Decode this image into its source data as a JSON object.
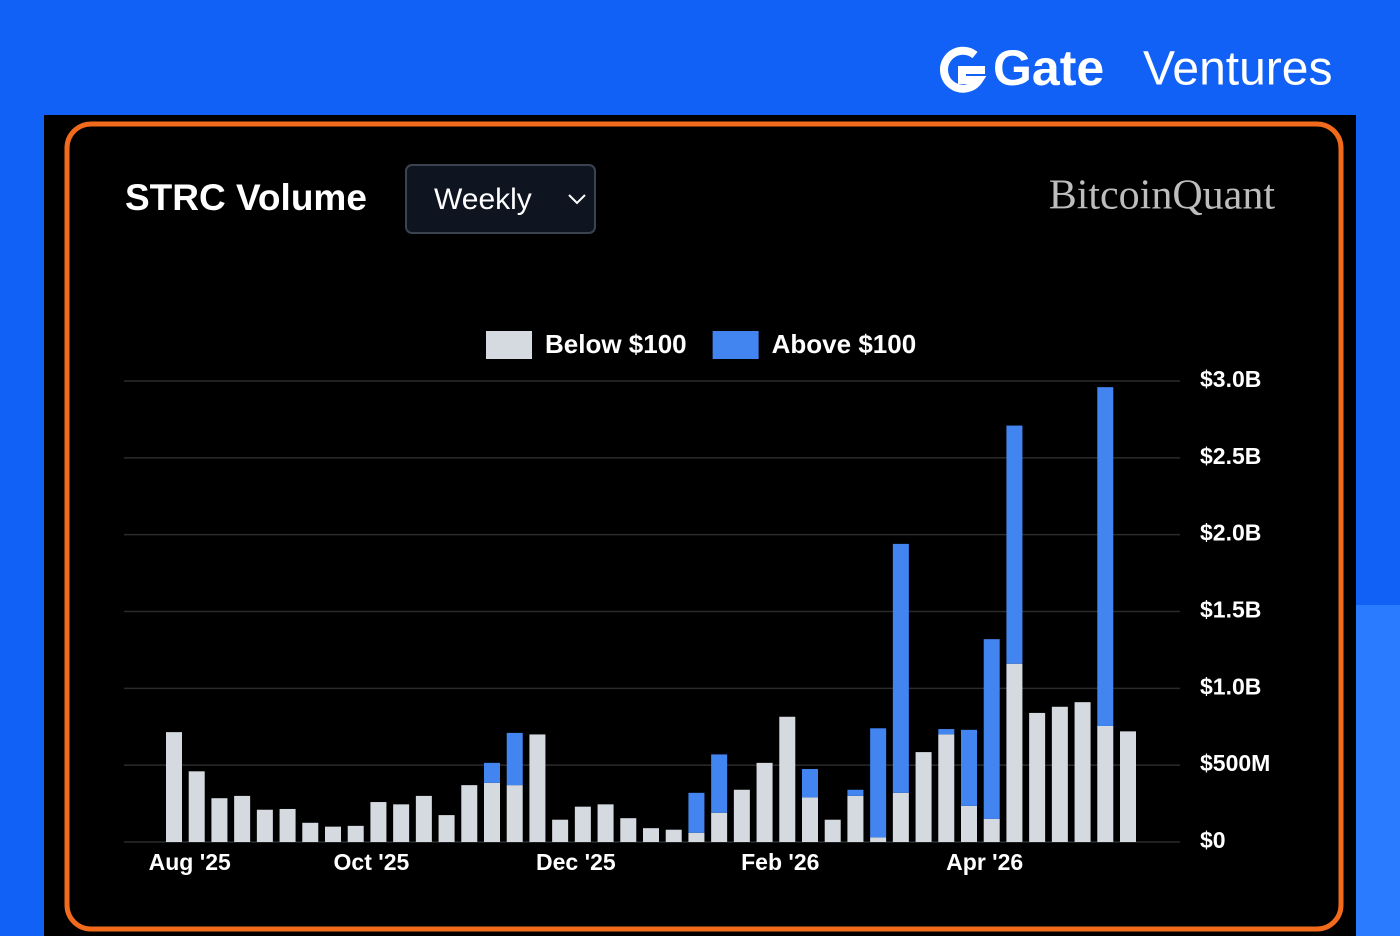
{
  "brand": {
    "name": "Gate",
    "suffix": "Ventures"
  },
  "selector": {
    "label": "Weekly"
  },
  "watermark": "BitcoinQuant",
  "chart_data": {
    "type": "stacked-bar",
    "title": "STRC Volume",
    "categories": [
      null,
      "Aug '25",
      null,
      null,
      null,
      null,
      null,
      null,
      null,
      "Oct '25",
      null,
      null,
      null,
      null,
      null,
      null,
      null,
      null,
      "Dec '25",
      null,
      null,
      null,
      null,
      null,
      null,
      null,
      null,
      "Feb '26",
      null,
      null,
      null,
      null,
      null,
      null,
      null,
      null,
      "Apr '26",
      null,
      null,
      null,
      null,
      null,
      null
    ],
    "series": [
      {
        "name": "Below $100",
        "color": "#d5dae1",
        "values": [
          715000000,
          460000000,
          285000000,
          300000000,
          210000000,
          215000000,
          125000000,
          100000000,
          105000000,
          260000000,
          245000000,
          300000000,
          175000000,
          370000000,
          385000000,
          370000000,
          700000000,
          145000000,
          230000000,
          245000000,
          155000000,
          90000000,
          80000000,
          60000000,
          190000000,
          340000000,
          515000000,
          815000000,
          290000000,
          145000000,
          300000000,
          30000000,
          320000000,
          585000000,
          700000000,
          235000000,
          150000000,
          1160000000,
          840000000,
          880000000,
          910000000,
          755000000,
          720000000
        ]
      },
      {
        "name": "Above $100",
        "color": "#4285f0",
        "values": [
          0,
          0,
          0,
          0,
          0,
          0,
          0,
          0,
          0,
          0,
          0,
          0,
          0,
          0,
          130000000,
          340000000,
          0,
          0,
          0,
          0,
          0,
          0,
          0,
          260000000,
          380000000,
          0,
          0,
          0,
          185000000,
          0,
          40000000,
          710000000,
          1620000000,
          0,
          35000000,
          495000000,
          1170000000,
          1550000000,
          0,
          0,
          0,
          2205000000,
          0
        ]
      }
    ],
    "ylim": [
      0,
      3000000000
    ],
    "yticks": [
      {
        "value": 0,
        "label": "$0"
      },
      {
        "value": 500000000,
        "label": "$500M"
      },
      {
        "value": 1000000000,
        "label": "$1.0B"
      },
      {
        "value": 1500000000,
        "label": "$1.5B"
      },
      {
        "value": 2000000000,
        "label": "$2.0B"
      },
      {
        "value": 2500000000,
        "label": "$2.5B"
      },
      {
        "value": 3000000000,
        "label": "$3.0B"
      }
    ],
    "grid": true,
    "legend": "top"
  }
}
